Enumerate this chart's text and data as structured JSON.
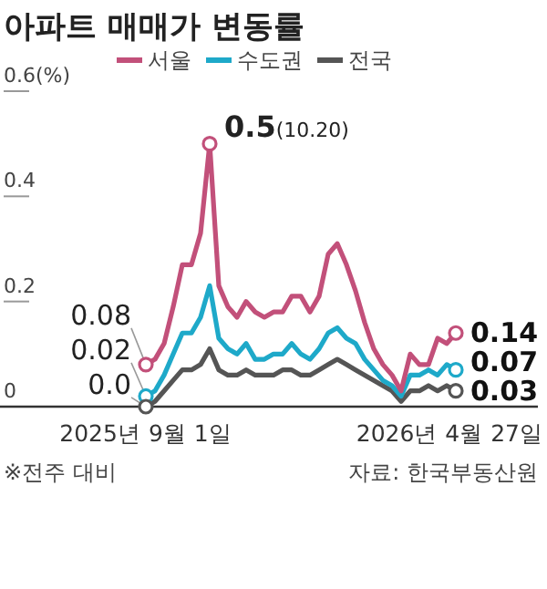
{
  "chart_data": {
    "type": "line",
    "title": "아파트 매매가 변동률",
    "x": [
      "2025-09-01",
      "2025-09-08",
      "2025-09-15",
      "2025-09-22",
      "2025-09-29",
      "2025-10-06",
      "2025-10-13",
      "2025-10-20",
      "2025-10-27",
      "2025-11-03",
      "2025-11-10",
      "2025-11-17",
      "2025-11-24",
      "2025-12-01",
      "2025-12-08",
      "2025-12-15",
      "2025-12-22",
      "2025-12-29",
      "2026-01-05",
      "2026-01-12",
      "2026-01-19",
      "2026-01-26",
      "2026-02-02",
      "2026-02-09",
      "2026-02-16",
      "2026-02-23",
      "2026-03-02",
      "2026-03-09",
      "2026-03-16",
      "2026-03-23",
      "2026-03-30",
      "2026-04-06",
      "2026-04-13",
      "2026-04-20",
      "2026-04-27"
    ],
    "series": [
      {
        "name": "서울",
        "color": "#c2507a",
        "values": [
          0.08,
          0.09,
          0.12,
          0.19,
          0.27,
          0.27,
          0.33,
          0.5,
          0.23,
          0.19,
          0.17,
          0.2,
          0.18,
          0.17,
          0.18,
          0.18,
          0.21,
          0.21,
          0.18,
          0.21,
          0.29,
          0.31,
          0.27,
          0.22,
          0.16,
          0.11,
          0.08,
          0.06,
          0.03,
          0.1,
          0.08,
          0.08,
          0.13,
          0.12,
          0.14
        ]
      },
      {
        "name": "수도권",
        "color": "#1ea9c9",
        "values": [
          0.02,
          0.03,
          0.06,
          0.1,
          0.14,
          0.14,
          0.17,
          0.23,
          0.13,
          0.11,
          0.1,
          0.12,
          0.09,
          0.09,
          0.1,
          0.1,
          0.12,
          0.1,
          0.09,
          0.11,
          0.14,
          0.15,
          0.13,
          0.12,
          0.09,
          0.07,
          0.05,
          0.04,
          0.02,
          0.06,
          0.06,
          0.07,
          0.06,
          0.08,
          0.07
        ]
      },
      {
        "name": "전국",
        "color": "#555555",
        "values": [
          0.0,
          0.01,
          0.03,
          0.05,
          0.07,
          0.07,
          0.08,
          0.11,
          0.07,
          0.06,
          0.06,
          0.07,
          0.06,
          0.06,
          0.06,
          0.07,
          0.07,
          0.06,
          0.06,
          0.07,
          0.08,
          0.09,
          0.08,
          0.07,
          0.06,
          0.05,
          0.04,
          0.03,
          0.01,
          0.03,
          0.03,
          0.04,
          0.03,
          0.04,
          0.03
        ]
      }
    ],
    "xlim": [
      "2025-05-12",
      "2026-06-29"
    ],
    "xticks": [
      {
        "value": "2025-09-01",
        "label": "2025년 9월 1일"
      },
      {
        "value": "2026-04-27",
        "label": "2026년 4월 27일"
      }
    ],
    "ylim": [
      0,
      0.6
    ],
    "yticks": [
      0,
      {
        "value": 0.2,
        "label": "0.2"
      },
      {
        "value": 0.4,
        "label": "0.4"
      },
      {
        "value": 0.6,
        "label": "0.6(%)"
      }
    ],
    "legend": "top left",
    "annotations": [
      {
        "text": "0.5(10.20)",
        "x": "2025-10-20",
        "y": 0.5
      },
      {
        "text": "0.08",
        "x": "2025-09-01",
        "y": 0.08
      },
      {
        "text": "0.02",
        "x": "2025-09-01",
        "y": 0.02
      },
      {
        "text": "0.0",
        "x": "2025-09-01",
        "y": 0.0
      },
      {
        "text": "0.14",
        "x": "2026-04-27",
        "y": 0.14
      },
      {
        "text": "0.07",
        "x": "2026-04-27",
        "y": 0.07
      },
      {
        "text": "0.03",
        "x": "2026-04-27",
        "y": 0.03
      },
      "※전주 대비",
      "자료: 한국부동산원"
    ]
  }
}
